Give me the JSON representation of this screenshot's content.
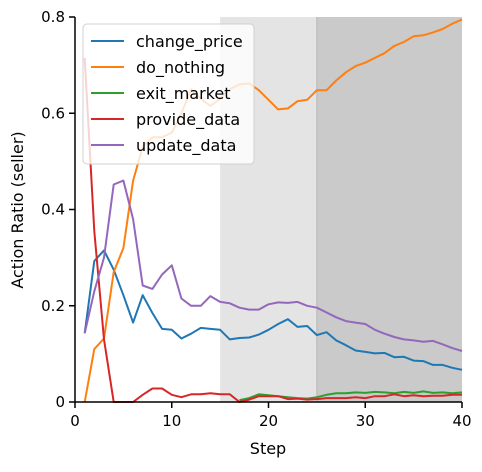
{
  "chart_data": {
    "type": "line",
    "title": "",
    "xlabel": "Step",
    "ylabel": "Action Ratio (seller)",
    "xlim": [
      0,
      40
    ],
    "ylim": [
      0,
      0.8
    ],
    "x_ticks": [
      0,
      10,
      20,
      30,
      40
    ],
    "y_ticks": [
      0,
      0.2,
      0.4,
      0.6,
      0.8
    ],
    "x_tick_labels": [
      "0",
      "10",
      "20",
      "30",
      "40"
    ],
    "y_tick_labels": [
      "0",
      "0.2",
      "0.4",
      "0.6",
      "0.8"
    ],
    "grid": false,
    "legend_position": "top-left",
    "shaded_regions": [
      {
        "x_start": 15,
        "x_end": 25,
        "color": "#e4e4e4"
      },
      {
        "x_start": 25,
        "x_end": 40,
        "color": "#cacaca"
      }
    ],
    "series": [
      {
        "name": "change_price",
        "color": "#1f77b4",
        "x": [
          1,
          2,
          3,
          4,
          5,
          6,
          7,
          8,
          9,
          10,
          11,
          12,
          13,
          14,
          15,
          16,
          17,
          18,
          19,
          20,
          21,
          22,
          23,
          24,
          25,
          26,
          27,
          28,
          29,
          30,
          31,
          32,
          33,
          34,
          35,
          36,
          37,
          38,
          39,
          40
        ],
        "y": [
          0.143,
          0.293,
          0.315,
          0.275,
          0.222,
          0.165,
          0.222,
          0.185,
          0.152,
          0.15,
          0.132,
          0.142,
          0.154,
          0.152,
          0.15,
          0.13,
          0.133,
          0.134,
          0.14,
          0.15,
          0.162,
          0.172,
          0.156,
          0.158,
          0.139,
          0.145,
          0.128,
          0.118,
          0.107,
          0.104,
          0.101,
          0.102,
          0.093,
          0.094,
          0.086,
          0.085,
          0.077,
          0.077,
          0.071,
          0.067
        ]
      },
      {
        "name": "do_nothing",
        "color": "#ff7f0e",
        "x": [
          1,
          2,
          3,
          4,
          5,
          6,
          7,
          8,
          9,
          10,
          11,
          12,
          13,
          14,
          15,
          16,
          17,
          18,
          19,
          20,
          21,
          22,
          23,
          24,
          25,
          26,
          27,
          28,
          29,
          30,
          31,
          32,
          33,
          34,
          35,
          36,
          37,
          38,
          39,
          40
        ],
        "y": [
          0.0,
          0.11,
          0.132,
          0.27,
          0.32,
          0.46,
          0.53,
          0.55,
          0.55,
          0.56,
          0.6,
          0.65,
          0.63,
          0.615,
          0.63,
          0.65,
          0.66,
          0.662,
          0.648,
          0.628,
          0.608,
          0.61,
          0.625,
          0.628,
          0.648,
          0.648,
          0.668,
          0.685,
          0.698,
          0.705,
          0.715,
          0.725,
          0.74,
          0.748,
          0.76,
          0.762,
          0.768,
          0.775,
          0.786,
          0.795
        ]
      },
      {
        "name": "exit_market",
        "color": "#2ca02c",
        "x": [
          17,
          18,
          19,
          20,
          21,
          22,
          23,
          24,
          25,
          26,
          27,
          28,
          29,
          30,
          31,
          32,
          33,
          34,
          35,
          36,
          37,
          38,
          39,
          40
        ],
        "y": [
          0.004,
          0.008,
          0.016,
          0.014,
          0.012,
          0.01,
          0.008,
          0.007,
          0.01,
          0.015,
          0.018,
          0.018,
          0.02,
          0.019,
          0.021,
          0.02,
          0.018,
          0.021,
          0.019,
          0.022,
          0.019,
          0.02,
          0.018,
          0.02
        ]
      },
      {
        "name": "provide_data",
        "color": "#d62728",
        "x": [
          1,
          2,
          3,
          4,
          5,
          6,
          7,
          8,
          9,
          10,
          11,
          12,
          13,
          14,
          15,
          16,
          17,
          18,
          19,
          20,
          21,
          22,
          23,
          24,
          25,
          26,
          27,
          28,
          29,
          30,
          31,
          32,
          33,
          34,
          35,
          36,
          37,
          38,
          39,
          40
        ],
        "y": [
          0.715,
          0.355,
          0.13,
          0.0,
          0.0,
          0.0,
          0.015,
          0.028,
          0.028,
          0.015,
          0.01,
          0.016,
          0.016,
          0.018,
          0.016,
          0.016,
          0.0,
          0.005,
          0.012,
          0.012,
          0.012,
          0.006,
          0.007,
          0.005,
          0.006,
          0.008,
          0.008,
          0.008,
          0.01,
          0.008,
          0.012,
          0.012,
          0.016,
          0.012,
          0.014,
          0.012,
          0.013,
          0.013,
          0.015,
          0.015
        ]
      },
      {
        "name": "update_data",
        "color": "#9467bd",
        "x": [
          1,
          2,
          3,
          4,
          5,
          6,
          7,
          8,
          9,
          10,
          11,
          12,
          13,
          14,
          15,
          16,
          17,
          18,
          19,
          20,
          21,
          22,
          23,
          24,
          25,
          26,
          27,
          28,
          29,
          30,
          31,
          32,
          33,
          34,
          35,
          36,
          37,
          38,
          39,
          40
        ],
        "y": [
          0.143,
          0.23,
          0.3,
          0.452,
          0.46,
          0.38,
          0.242,
          0.235,
          0.265,
          0.284,
          0.215,
          0.2,
          0.2,
          0.22,
          0.208,
          0.205,
          0.196,
          0.192,
          0.192,
          0.203,
          0.207,
          0.206,
          0.208,
          0.2,
          0.196,
          0.186,
          0.176,
          0.168,
          0.165,
          0.162,
          0.15,
          0.142,
          0.135,
          0.13,
          0.128,
          0.125,
          0.127,
          0.12,
          0.112,
          0.106
        ]
      }
    ]
  }
}
